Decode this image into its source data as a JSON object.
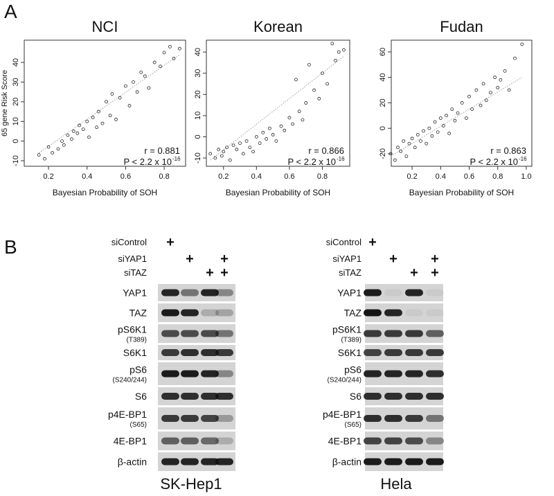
{
  "panel_labels": [
    "A",
    "B"
  ],
  "chart_data": [
    {
      "type": "scatter",
      "title": "NCI",
      "xlabel": "Bayesian Probability of SOH",
      "ylabel": "65 gene Risk Score",
      "xlim": [
        0.074,
        0.911
      ],
      "ylim": [
        -12.8,
        51.3
      ],
      "xticks": [
        0.2,
        0.4,
        0.6,
        0.8
      ],
      "yticks": [
        -10,
        0,
        10,
        20,
        30,
        40
      ],
      "x": [
        0.15,
        0.18,
        0.2,
        0.22,
        0.25,
        0.27,
        0.28,
        0.3,
        0.32,
        0.33,
        0.35,
        0.36,
        0.38,
        0.4,
        0.41,
        0.43,
        0.45,
        0.46,
        0.48,
        0.5,
        0.52,
        0.53,
        0.55,
        0.57,
        0.6,
        0.62,
        0.64,
        0.66,
        0.68,
        0.7,
        0.72,
        0.75,
        0.78,
        0.8,
        0.83,
        0.85,
        0.88
      ],
      "y": [
        -7,
        -9,
        -3,
        -6,
        -4,
        0,
        -2,
        3,
        1,
        5,
        4,
        8,
        6,
        10,
        2,
        12,
        7,
        15,
        9,
        20,
        13,
        24,
        11,
        22,
        28,
        18,
        30,
        25,
        35,
        33,
        27,
        40,
        38,
        45,
        48,
        42,
        47
      ],
      "trend_line": {
        "x": [
          0.15,
          0.88
        ],
        "y": [
          -6,
          44
        ]
      },
      "r_text": "r = 0.881",
      "p_text": "P < 2.2 x 10",
      "p_exponent": "-16"
    },
    {
      "type": "scatter",
      "title": "Korean",
      "xlabel": "Bayesian Probability of SOH",
      "xlim": [
        0.096,
        0.966
      ],
      "ylim": [
        -13.9,
        45.6
      ],
      "xticks": [
        0.2,
        0.4,
        0.6,
        0.8
      ],
      "yticks": [
        -10,
        0,
        10,
        20,
        30,
        40
      ],
      "x": [
        0.12,
        0.15,
        0.17,
        0.19,
        0.2,
        0.22,
        0.24,
        0.26,
        0.28,
        0.3,
        0.32,
        0.34,
        0.36,
        0.38,
        0.4,
        0.42,
        0.44,
        0.46,
        0.48,
        0.5,
        0.52,
        0.55,
        0.57,
        0.6,
        0.62,
        0.64,
        0.66,
        0.68,
        0.7,
        0.72,
        0.75,
        0.78,
        0.8,
        0.83,
        0.86,
        0.88,
        0.9,
        0.93
      ],
      "y": [
        -8,
        -10,
        -6,
        -9,
        -7,
        -5,
        -11,
        -4,
        -6,
        -3,
        -8,
        -2,
        -5,
        -7,
        0,
        -3,
        2,
        -1,
        4,
        1,
        -2,
        5,
        3,
        9,
        6,
        27,
        12,
        8,
        16,
        34,
        22,
        18,
        30,
        25,
        44,
        36,
        40,
        41
      ],
      "trend_line": {
        "x": [
          0.12,
          0.93
        ],
        "y": [
          -11,
          38
        ]
      },
      "r_text": "r = 0.866",
      "p_text": "P < 2.2 x 10",
      "p_exponent": "-16"
    },
    {
      "type": "scatter",
      "title": "Fudan",
      "xlabel": "Bayesian Probability of SOH",
      "xlim": [
        0.054,
        1.039
      ],
      "ylim": [
        -29.8,
        69.2
      ],
      "xticks": [
        0.2,
        0.4,
        0.6,
        0.8,
        {
          "value": 1,
          "label": "1.0"
        }
      ],
      "yticks": [
        -20,
        0,
        20,
        40,
        60
      ],
      "x": [
        0.05,
        0.08,
        0.1,
        0.12,
        0.14,
        0.16,
        0.18,
        0.2,
        0.22,
        0.24,
        0.26,
        0.28,
        0.3,
        0.32,
        0.34,
        0.36,
        0.38,
        0.4,
        0.42,
        0.44,
        0.46,
        0.48,
        0.5,
        0.52,
        0.55,
        0.58,
        0.6,
        0.62,
        0.65,
        0.68,
        0.7,
        0.72,
        0.75,
        0.78,
        0.8,
        0.82,
        0.85,
        0.88,
        0.92,
        0.97
      ],
      "y": [
        -20,
        -25,
        -15,
        -18,
        -10,
        -22,
        -12,
        -8,
        -15,
        -5,
        -10,
        -2,
        -12,
        0,
        -6,
        5,
        -3,
        8,
        2,
        10,
        -4,
        15,
        6,
        12,
        20,
        8,
        25,
        15,
        30,
        18,
        35,
        22,
        28,
        40,
        32,
        38,
        45,
        30,
        55,
        66
      ],
      "trend_line": {
        "x": [
          0.05,
          0.97
        ],
        "y": [
          -22,
          40
        ]
      },
      "r_text": "r = 0.863",
      "p_text": "P < 2.2 x 10",
      "p_exponent": "-16"
    }
  ],
  "blots": [
    {
      "cell_line": "SK-Hep1",
      "treatments": [
        {
          "name": "siControl",
          "lanes": [
            "+",
            null,
            null,
            null
          ]
        },
        {
          "name": "siYAP1",
          "lanes": [
            null,
            "+",
            null,
            "+"
          ]
        },
        {
          "name": "siTAZ",
          "lanes": [
            null,
            null,
            "+",
            "+"
          ]
        }
      ],
      "rows": [
        {
          "label": "YAP1"
        },
        {
          "label": "TAZ"
        },
        {
          "label": "pS6K1",
          "sublabel": "(T389)"
        },
        {
          "label": "S6K1"
        },
        {
          "label": "pS6",
          "sublabel": "(S240/244)"
        },
        {
          "label": "S6"
        },
        {
          "label": "p4E-BP1",
          "sublabel": "(S65)"
        },
        {
          "label": "4E-BP1"
        },
        {
          "label": "β-actin"
        }
      ]
    },
    {
      "cell_line": "Hela",
      "treatments": [
        {
          "name": "siControl",
          "lanes": [
            "+",
            null,
            null,
            null
          ]
        },
        {
          "name": "siYAP1",
          "lanes": [
            null,
            "+",
            null,
            "+"
          ]
        },
        {
          "name": "siTAZ",
          "lanes": [
            null,
            null,
            "+",
            "+"
          ]
        }
      ],
      "rows": [
        {
          "label": "YAP1"
        },
        {
          "label": "TAZ"
        },
        {
          "label": "pS6K1",
          "sublabel": "(T389)"
        },
        {
          "label": "S6K1"
        },
        {
          "label": "pS6",
          "sublabel": "(S240/244)"
        },
        {
          "label": "S6"
        },
        {
          "label": "p4E-BP1",
          "sublabel": "(S65)"
        },
        {
          "label": "4E-BP1"
        },
        {
          "label": "β-actin"
        }
      ]
    }
  ]
}
